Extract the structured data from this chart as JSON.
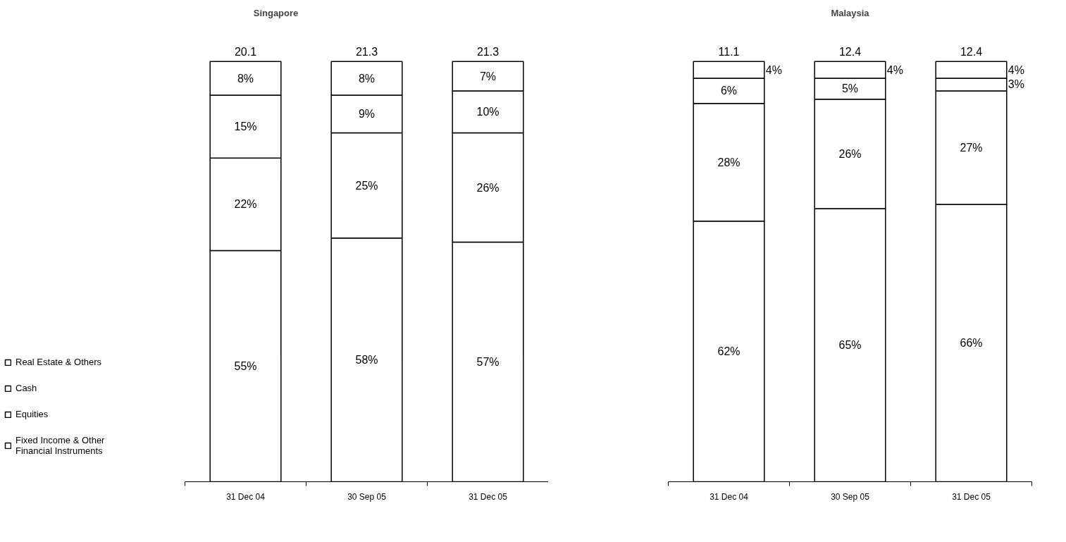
{
  "chart_data": [
    {
      "type": "bar",
      "title": "Singapore",
      "categories": [
        "31 Dec 04",
        "30 Sep 05",
        "31 Dec 05"
      ],
      "stacked": true,
      "legend": "left",
      "series": [
        {
          "name": "Fixed Income & Other Financial Instruments",
          "color": "#ffffff",
          "values": [
            55,
            58,
            57
          ],
          "value_labels": [
            "55%",
            "58%",
            "57%"
          ]
        },
        {
          "name": "Equities",
          "color": "#ffffff",
          "values": [
            22,
            25,
            26
          ],
          "value_labels": [
            "22%",
            "25%",
            "26%"
          ]
        },
        {
          "name": "Cash",
          "color": "#ffffff",
          "values": [
            15,
            9,
            10
          ],
          "value_labels": [
            "15%",
            "9%",
            "10%"
          ]
        },
        {
          "name": "Real Estate & Others",
          "color": "#ffffff",
          "values": [
            8,
            8,
            7
          ],
          "value_labels": [
            "8%",
            "8%",
            "7%"
          ]
        }
      ],
      "annotations": [
        {
          "text": "20.1",
          "x": "31 Dec 04",
          "y": 100
        },
        {
          "text": "21.3",
          "x": "30 Sep 05",
          "y": 100
        },
        {
          "text": "21.3",
          "x": "31 Dec 05",
          "y": 100
        }
      ]
    },
    {
      "type": "bar",
      "title": "Malaysia",
      "categories": [
        "31 Dec 04",
        "30 Sep 05",
        "31 Dec 05"
      ],
      "stacked": true,
      "series": [
        {
          "color": "#ffffff",
          "values": [
            62,
            65,
            66
          ],
          "value_labels": [
            "62%",
            "65%",
            "66%"
          ]
        },
        {
          "color": "#ffffff",
          "values": [
            28,
            26,
            27
          ],
          "value_labels": [
            "28%",
            "26%",
            "27%"
          ]
        },
        {
          "color": "#ffffff",
          "values": [
            6,
            5,
            3
          ],
          "value_labels": [
            "6%",
            "5%",
            "3%"
          ]
        },
        {
          "color": "#ffffff",
          "values": [
            4,
            4,
            4
          ],
          "value_labels": [
            "4%",
            "4%",
            "4%"
          ]
        }
      ],
      "annotations": [
        {
          "text": "11.1",
          "x": "31 Dec 04",
          "y": 100
        },
        {
          "text": "12.4",
          "x": "30 Sep 05",
          "y": 100
        },
        {
          "text": "12.4",
          "x": "31 Dec 05",
          "y": 100
        }
      ]
    }
  ]
}
